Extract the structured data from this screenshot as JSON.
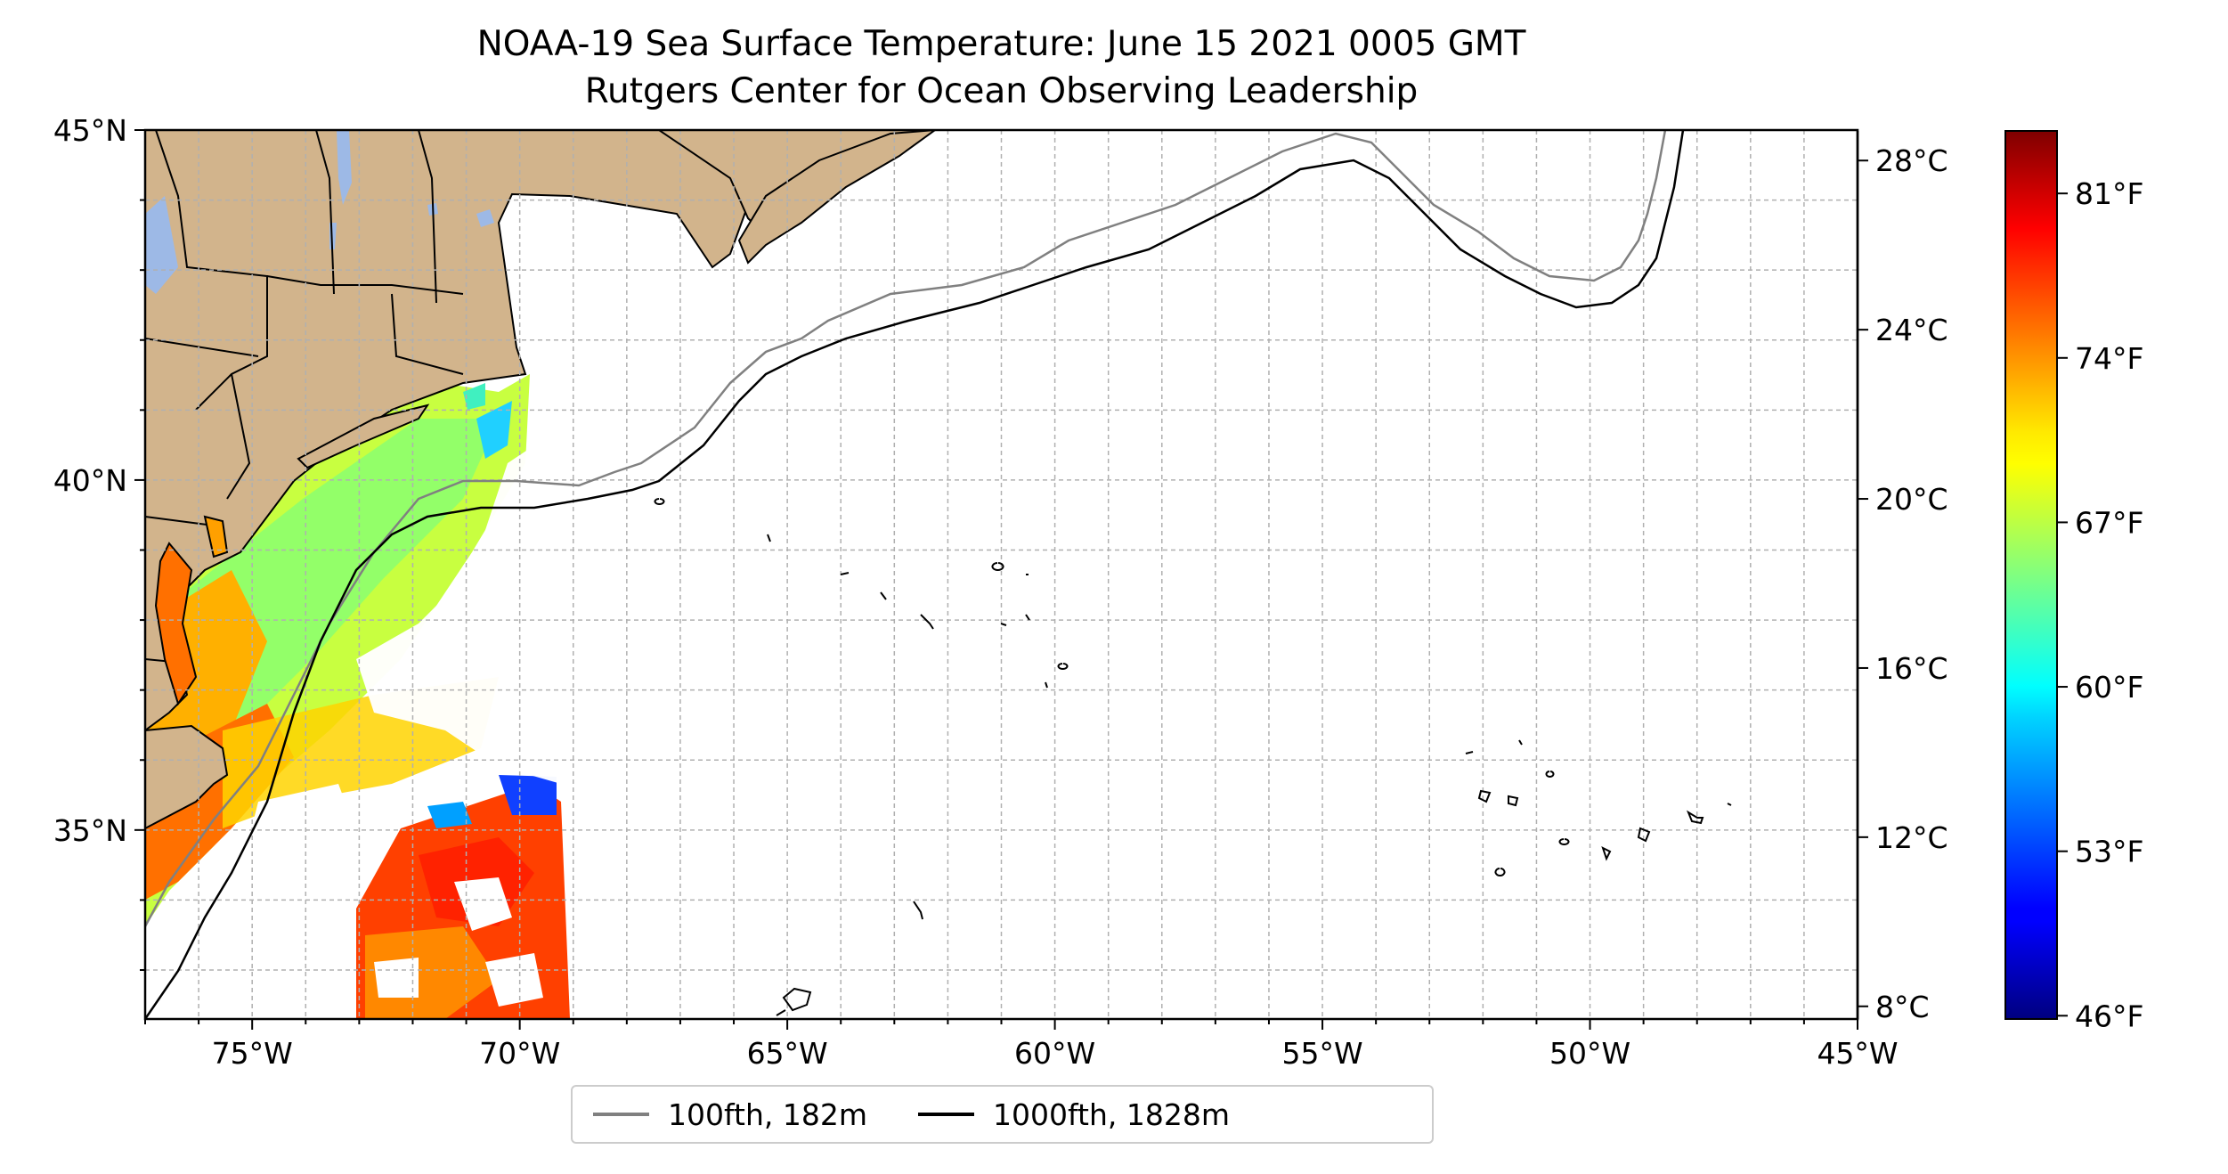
{
  "title": {
    "line1": "NOAA-19 Sea Surface Temperature: June 15 2021 0005 GMT",
    "line2": "Rutgers Center for Ocean Observing Leadership"
  },
  "map": {
    "extent": {
      "lon": [
        -77,
        -45
      ],
      "lat": [
        32.3,
        45
      ]
    },
    "x_ticks": [
      "75°W",
      "70°W",
      "65°W",
      "60°W",
      "55°W",
      "50°W",
      "45°W"
    ],
    "y_ticks": [
      "45°N",
      "40°N",
      "35°N"
    ],
    "gridlines": "dashed, 1° spacing",
    "colors": {
      "land": "#d2b48c",
      "lakes": "#9db9e6",
      "isobath_100fth": "#808080",
      "isobath_1000fth": "#000000"
    }
  },
  "colorbar": {
    "colormap": "jet",
    "celsius_ticks": [
      "28°C",
      "24°C",
      "20°C",
      "16°C",
      "12°C",
      "8°C"
    ],
    "fahrenheit_ticks": [
      "81°F",
      "74°F",
      "67°F",
      "60°F",
      "53°F",
      "46°F"
    ],
    "range_c": [
      7.7,
      28.7
    ]
  },
  "legend": {
    "items": [
      {
        "label": "100fth, 182m",
        "color": "#808080"
      },
      {
        "label": "1000fth, 1828m",
        "color": "#000000"
      }
    ],
    "placement": "below map"
  }
}
